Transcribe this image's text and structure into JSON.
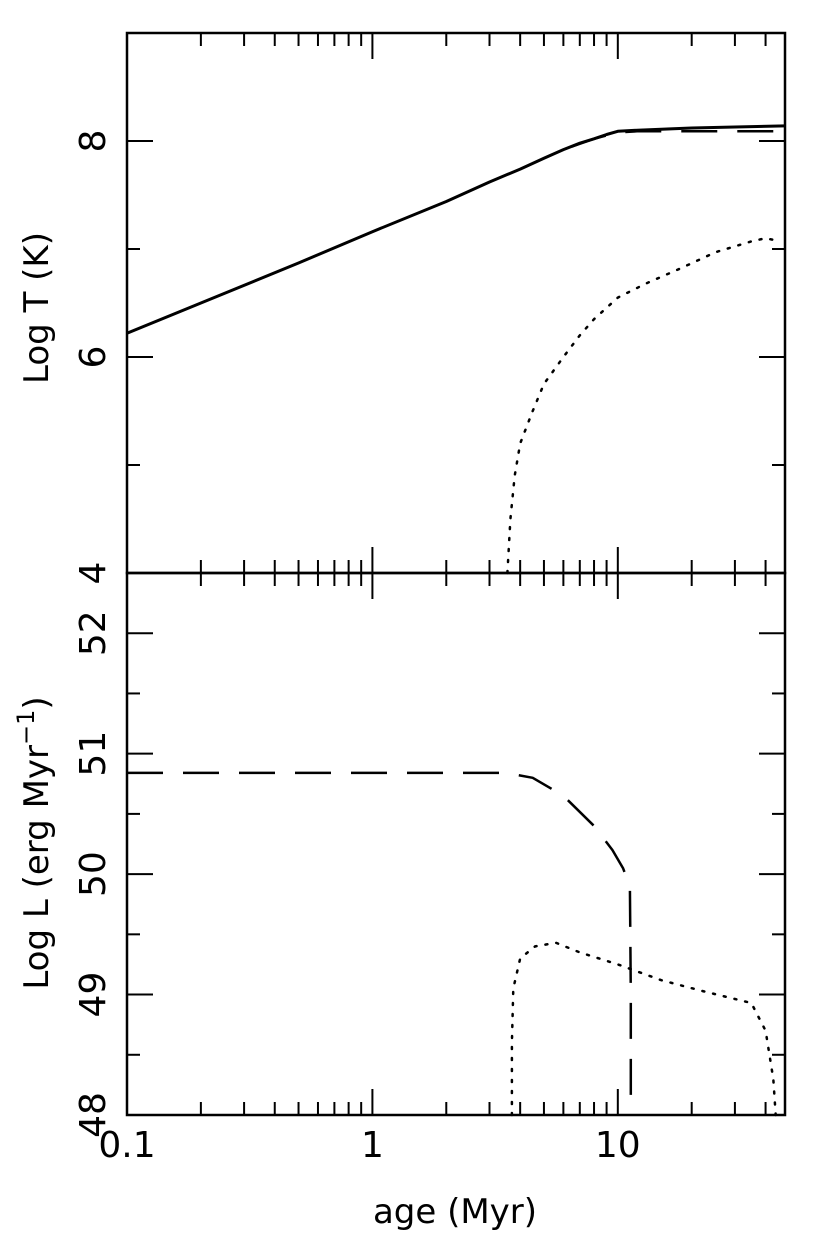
{
  "chart_data": [
    {
      "type": "line",
      "title": "",
      "ylabel": "Log T (K)",
      "xlabel": "",
      "xscale": "log",
      "xlim": [
        0.1,
        48
      ],
      "ylim": [
        4,
        9
      ],
      "x_ticks": [
        0.1,
        1,
        10
      ],
      "y_tick_labels": [
        "4",
        "6",
        "8"
      ],
      "y_ticks": [
        4,
        6,
        8
      ],
      "series": [
        {
          "style": "solid",
          "color": "#000000",
          "points": [
            [
              0.1,
              6.22
            ],
            [
              0.2,
              6.5
            ],
            [
              0.5,
              6.87
            ],
            [
              1,
              7.16
            ],
            [
              2,
              7.44
            ],
            [
              3,
              7.62
            ],
            [
              4,
              7.74
            ],
            [
              5,
              7.84
            ],
            [
              6,
              7.92
            ],
            [
              7,
              7.98
            ],
            [
              8,
              8.02
            ],
            [
              9,
              8.06
            ],
            [
              10,
              8.09
            ],
            [
              12,
              8.1
            ],
            [
              20,
              8.12
            ],
            [
              30,
              8.13
            ],
            [
              48,
              8.14
            ]
          ]
        },
        {
          "style": "dashed",
          "color": "#000000",
          "points": [
            [
              4,
              7.74
            ],
            [
              6,
              7.92
            ],
            [
              8,
              8.02
            ],
            [
              10,
              8.08
            ],
            [
              12,
              8.09
            ],
            [
              20,
              8.09
            ],
            [
              30,
              8.09
            ],
            [
              48,
              8.09
            ]
          ]
        },
        {
          "style": "dotted",
          "color": "#000000",
          "points": [
            [
              3.55,
              4.0
            ],
            [
              3.65,
              4.5
            ],
            [
              3.8,
              4.9
            ],
            [
              4.0,
              5.2
            ],
            [
              4.5,
              5.5
            ],
            [
              5,
              5.75
            ],
            [
              6,
              6.0
            ],
            [
              7,
              6.2
            ],
            [
              8,
              6.35
            ],
            [
              10,
              6.55
            ],
            [
              13,
              6.68
            ],
            [
              18,
              6.82
            ],
            [
              25,
              6.97
            ],
            [
              35,
              7.07
            ],
            [
              40,
              7.1
            ],
            [
              44,
              7.08
            ]
          ]
        }
      ]
    },
    {
      "type": "line",
      "title": "",
      "ylabel": "Log L (erg Myr",
      "ylabel_sup": "−1",
      "ylabel_close": ")",
      "xlabel": "age (Myr)",
      "xscale": "log",
      "xlim": [
        0.1,
        48
      ],
      "ylim": [
        48,
        52.5
      ],
      "x_tick_labels": [
        "0.1",
        "1",
        "10"
      ],
      "x_ticks": [
        0.1,
        1,
        10
      ],
      "y_tick_labels": [
        "48",
        "49",
        "50",
        "51",
        "52"
      ],
      "y_ticks": [
        48,
        49,
        50,
        51,
        52
      ],
      "series": [
        {
          "style": "dashed",
          "color": "#000000",
          "points": [
            [
              0.1,
              50.84
            ],
            [
              1,
              50.84
            ],
            [
              2,
              50.84
            ],
            [
              3.5,
              50.84
            ],
            [
              4.5,
              50.8
            ],
            [
              6,
              50.65
            ],
            [
              8,
              50.4
            ],
            [
              9.5,
              50.2
            ],
            [
              10.5,
              50.05
            ],
            [
              11.2,
              49.9
            ],
            [
              11.3,
              49.0
            ],
            [
              11.3,
              48.0
            ]
          ]
        },
        {
          "style": "dotted",
          "color": "#000000",
          "points": [
            [
              3.7,
              48.0
            ],
            [
              3.7,
              48.6
            ],
            [
              3.75,
              49.05
            ],
            [
              4.0,
              49.3
            ],
            [
              4.6,
              49.4
            ],
            [
              5.6,
              49.43
            ],
            [
              7,
              49.35
            ],
            [
              10,
              49.25
            ],
            [
              15,
              49.12
            ],
            [
              22,
              49.03
            ],
            [
              35,
              48.93
            ],
            [
              40,
              48.7
            ],
            [
              43,
              48.3
            ],
            [
              44,
              48.0
            ]
          ]
        }
      ]
    }
  ]
}
